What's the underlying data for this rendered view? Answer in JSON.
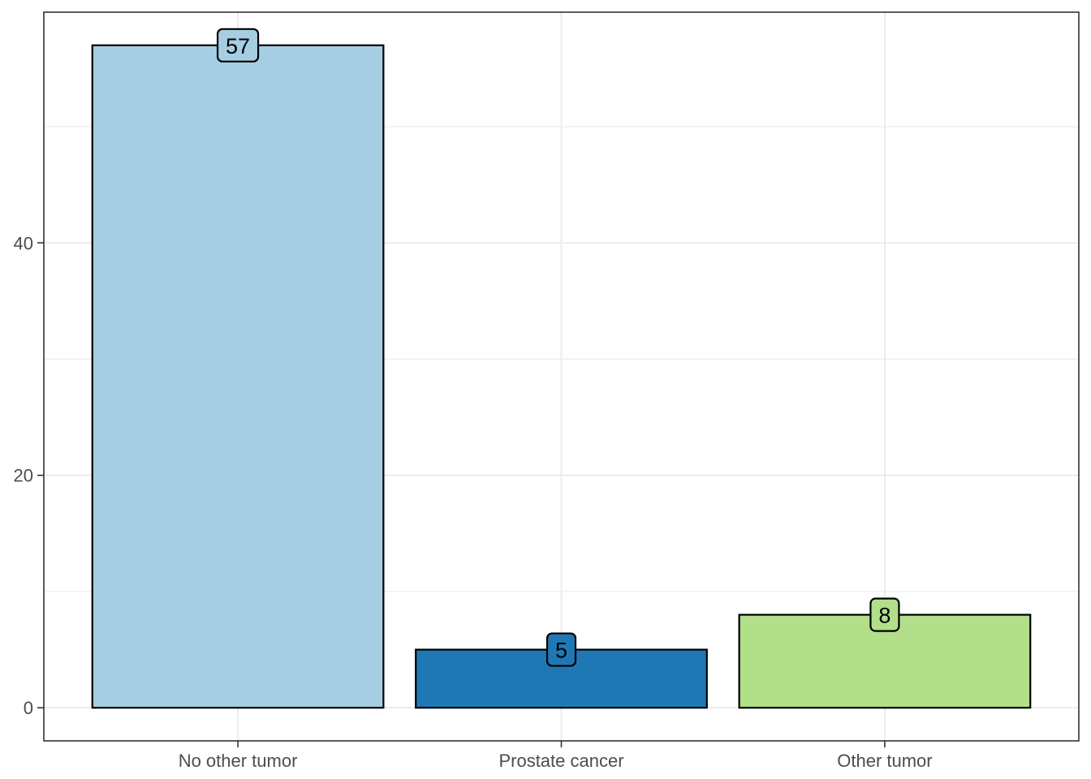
{
  "chart_data": {
    "type": "bar",
    "categories": [
      "No other tumor",
      "Prostate cancer",
      "Other tumor"
    ],
    "values": [
      57,
      5,
      8
    ],
    "data_labels": [
      "57",
      "5",
      "8"
    ],
    "colors": [
      "#a6cee3",
      "#1f78b4",
      "#b2df8a"
    ],
    "title": "",
    "xlabel": "",
    "ylabel": "",
    "ylim": [
      -2.85,
      59.85
    ],
    "y_ticks": [
      0,
      20,
      40
    ],
    "y_tick_labels": [
      "0",
      "20",
      "40"
    ],
    "y_minor": [
      10,
      30,
      50
    ],
    "grid": true,
    "legend": "none"
  }
}
